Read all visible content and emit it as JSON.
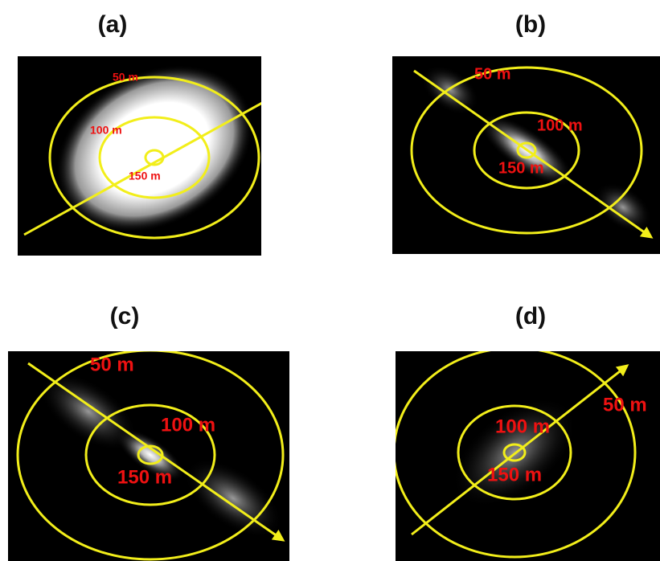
{
  "panels": [
    {
      "label": "(a)",
      "rings": [
        "50 m",
        "100 m",
        "150 m"
      ]
    },
    {
      "label": "(b)",
      "rings": [
        "50 m",
        "100 m",
        "150 m"
      ]
    },
    {
      "label": "(c)",
      "rings": [
        "50 m",
        "100 m",
        "150 m"
      ]
    },
    {
      "label": "(d)",
      "rings": [
        "50 m",
        "100 m",
        "150 m"
      ]
    }
  ]
}
